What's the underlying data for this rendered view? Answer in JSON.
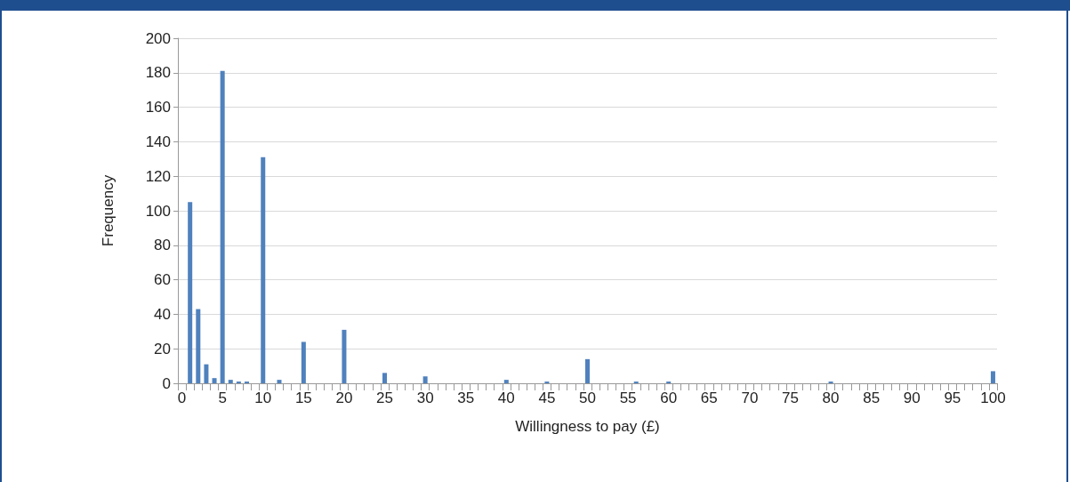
{
  "chart_data": {
    "type": "bar",
    "xlabel": "Willingness to pay (£)",
    "ylabel": "Frequency",
    "categories": [
      "0",
      null,
      null,
      null,
      null,
      "5",
      null,
      null,
      null,
      null,
      "10",
      null,
      null,
      null,
      null,
      "15",
      null,
      null,
      null,
      null,
      "20",
      null,
      null,
      null,
      null,
      "25",
      null,
      null,
      null,
      null,
      "30",
      null,
      null,
      null,
      null,
      "35",
      null,
      null,
      null,
      null,
      "40",
      null,
      null,
      null,
      null,
      "45",
      null,
      null,
      null,
      null,
      "50",
      null,
      null,
      null,
      null,
      "55",
      null,
      null,
      null,
      null,
      "60",
      null,
      null,
      null,
      null,
      "65",
      null,
      null,
      null,
      null,
      "70",
      null,
      null,
      null,
      null,
      "75",
      null,
      null,
      null,
      null,
      "80",
      null,
      null,
      null,
      null,
      "85",
      null,
      null,
      null,
      null,
      "90",
      null,
      null,
      null,
      null,
      "95",
      null,
      null,
      null,
      null,
      "100"
    ],
    "values": [
      0,
      105,
      43,
      11,
      3,
      181,
      2,
      1,
      1,
      0,
      131,
      0,
      2,
      0,
      0,
      24,
      0,
      0,
      0,
      0,
      31,
      0,
      0,
      0,
      0,
      6,
      0,
      0,
      0,
      0,
      4,
      0,
      0,
      0,
      0,
      0,
      0,
      0,
      0,
      0,
      2,
      0,
      0,
      0,
      0,
      1,
      0,
      0,
      0,
      0,
      14,
      0,
      0,
      0,
      0,
      0,
      1,
      0,
      0,
      0,
      1,
      0,
      0,
      0,
      0,
      0,
      0,
      0,
      0,
      0,
      0,
      0,
      0,
      0,
      0,
      0,
      0,
      0,
      0,
      0,
      1,
      0,
      0,
      0,
      0,
      0,
      0,
      0,
      0,
      0,
      0,
      0,
      0,
      0,
      0,
      0,
      0,
      0,
      0,
      0,
      7
    ],
    "color": "#4f81bd",
    "ylim": [
      0,
      200
    ],
    "yticks": [
      0,
      20,
      40,
      60,
      80,
      100,
      120,
      140,
      160,
      180,
      200
    ],
    "grid": "y"
  }
}
